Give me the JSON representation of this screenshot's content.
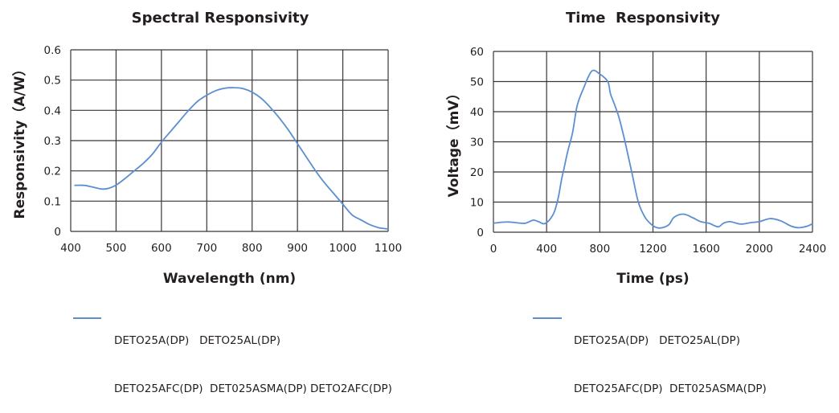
{
  "chart_data": [
    {
      "type": "line",
      "title": "Spectral Responsivity",
      "xlabel": "Wavelength (nm)",
      "ylabel": "Responsivity（A/W）",
      "xlim": [
        400,
        1100
      ],
      "ylim": [
        0,
        0.6
      ],
      "x_ticks": [
        "400",
        "500",
        "600",
        "700",
        "800",
        "900",
        "1000",
        "1100"
      ],
      "y_ticks": [
        "0",
        "0.1",
        "0.2",
        "0.3",
        "0.4",
        "0.5",
        "0.6"
      ],
      "grid": true,
      "legend_position": "bottom",
      "legend": [
        "DETO25A(DP)   DETO25AL(DP)",
        "DETO25AFC(DP)  DET025ASMA(DP) DETO2AFC(DP)"
      ],
      "color": "#5b8fd0",
      "series": [
        {
          "name": "DETO25A(DP) DETO25AL(DP) DETO25AFC(DP) DET025ASMA(DP) DETO2AFC(DP)",
          "x": [
            408,
            430,
            450,
            470,
            485,
            500,
            520,
            540,
            560,
            580,
            600,
            620,
            640,
            660,
            680,
            700,
            720,
            740,
            760,
            780,
            800,
            820,
            840,
            860,
            880,
            900,
            920,
            940,
            960,
            980,
            1000,
            1020,
            1040,
            1060,
            1080,
            1100
          ],
          "y": [
            0.152,
            0.152,
            0.146,
            0.14,
            0.143,
            0.153,
            0.175,
            0.2,
            0.225,
            0.255,
            0.295,
            0.33,
            0.365,
            0.4,
            0.43,
            0.45,
            0.465,
            0.473,
            0.475,
            0.472,
            0.46,
            0.44,
            0.41,
            0.375,
            0.335,
            0.29,
            0.245,
            0.2,
            0.16,
            0.125,
            0.09,
            0.055,
            0.038,
            0.022,
            0.012,
            0.008
          ]
        }
      ]
    },
    {
      "type": "line",
      "title": "Time  Responsivity",
      "xlabel": "Time (ps)",
      "ylabel": "Voltage（mV）",
      "xlim": [
        0,
        2400
      ],
      "ylim": [
        0,
        60
      ],
      "x_ticks": [
        "0",
        "400",
        "800",
        "1200",
        "1600",
        "2000",
        "2400"
      ],
      "y_ticks": [
        "0",
        "10",
        "20",
        "30",
        "40",
        "50",
        "60"
      ],
      "grid": true,
      "legend_position": "bottom",
      "legend": [
        "DETO25A(DP)   DETO25AL(DP)",
        "DETO25AFC(DP)  DET025ASMA(DP)"
      ],
      "color": "#5b8fd0",
      "series": [
        {
          "name": "DETO25A(DP) DETO25AL(DP) DETO25AFC(DP) DET025ASMA(DP)",
          "x": [
            0,
            60,
            120,
            180,
            240,
            300,
            340,
            380,
            420,
            460,
            490,
            510,
            530,
            560,
            595,
            630,
            680,
            740,
            800,
            860,
            880,
            910,
            945,
            990,
            1045,
            1090,
            1140,
            1190,
            1230,
            1270,
            1320,
            1360,
            1430,
            1500,
            1560,
            1620,
            1690,
            1730,
            1780,
            1860,
            1940,
            2000,
            2080,
            2160,
            2240,
            2300,
            2360,
            2400
          ],
          "y": [
            3,
            3.3,
            3.4,
            3.1,
            3,
            4,
            3.5,
            2.8,
            4,
            7,
            12,
            17,
            21,
            27,
            33,
            42,
            48,
            53.5,
            52.5,
            50,
            46,
            42.5,
            38,
            30,
            19,
            10,
            5,
            2.5,
            1.5,
            1.5,
            2.5,
            5,
            6,
            4.8,
            3.5,
            3,
            1.8,
            3,
            3.5,
            2.7,
            3.2,
            3.5,
            4.5,
            3.8,
            2,
            1.5,
            2,
            2.8
          ]
        }
      ]
    }
  ]
}
